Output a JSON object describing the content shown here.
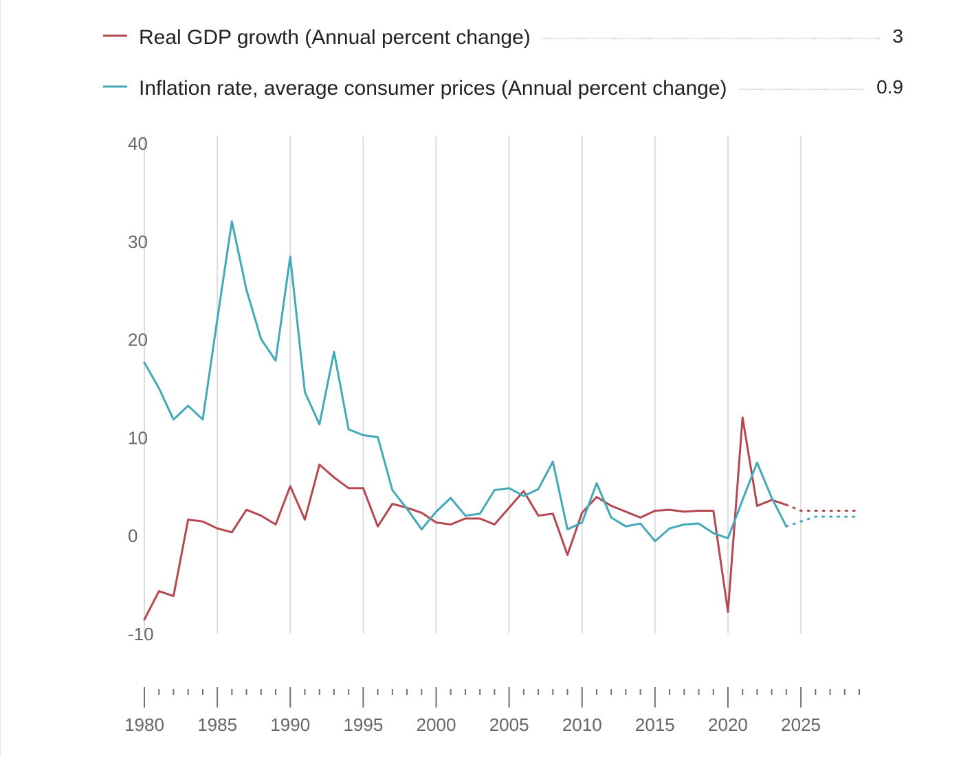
{
  "chart_data": {
    "type": "line",
    "title": "",
    "xlabel": "",
    "ylabel": "",
    "xlim": [
      1980,
      2029
    ],
    "ylim": [
      -10,
      40
    ],
    "grid": "vertical every 5 years",
    "legend_position": "top",
    "x_ticks": [
      "1980",
      "1985",
      "1990",
      "1995",
      "2000",
      "2005",
      "2010",
      "2015",
      "2020",
      "2025"
    ],
    "y_ticks": [
      "40",
      "30",
      "20",
      "10",
      "0",
      "-10"
    ],
    "last_actual_year": 2024,
    "series": [
      {
        "name": "Real GDP growth (Annual percent change)",
        "color": "#b5474f",
        "legend_value": "3",
        "x": [
          1980,
          1981,
          1982,
          1983,
          1984,
          1985,
          1986,
          1987,
          1988,
          1989,
          1990,
          1991,
          1992,
          1993,
          1994,
          1995,
          1996,
          1997,
          1998,
          1999,
          2000,
          2001,
          2002,
          2003,
          2004,
          2005,
          2006,
          2007,
          2008,
          2009,
          2010,
          2011,
          2012,
          2013,
          2014,
          2015,
          2016,
          2017,
          2018,
          2019,
          2020,
          2021,
          2022,
          2023,
          2024,
          2025,
          2026,
          2027,
          2028,
          2029
        ],
        "values": [
          -8.6,
          -5.7,
          -6.2,
          1.6,
          1.4,
          0.7,
          0.3,
          2.6,
          2.0,
          1.1,
          5.0,
          1.6,
          7.2,
          5.9,
          4.8,
          4.8,
          0.9,
          3.2,
          2.8,
          2.3,
          1.3,
          1.1,
          1.7,
          1.7,
          1.1,
          2.8,
          4.5,
          2.0,
          2.2,
          -2.0,
          2.3,
          3.9,
          3.0,
          2.4,
          1.8,
          2.5,
          2.6,
          2.4,
          2.5,
          2.5,
          -7.8,
          12.0,
          3.0,
          3.6,
          3.1,
          2.5,
          2.5,
          2.5,
          2.5,
          2.5
        ]
      },
      {
        "name": "Inflation rate, average consumer prices (Annual percent change)",
        "color": "#41a9b7",
        "legend_value": "0.9",
        "x": [
          1980,
          1981,
          1982,
          1983,
          1984,
          1985,
          1986,
          1987,
          1988,
          1989,
          1990,
          1991,
          1992,
          1993,
          1994,
          1995,
          1996,
          1997,
          1998,
          1999,
          2000,
          2001,
          2002,
          2003,
          2004,
          2005,
          2006,
          2007,
          2008,
          2009,
          2010,
          2011,
          2012,
          2013,
          2014,
          2015,
          2016,
          2017,
          2018,
          2019,
          2020,
          2021,
          2022,
          2023,
          2024,
          2025,
          2026,
          2027,
          2028,
          2029
        ],
        "values": [
          17.6,
          15.0,
          11.8,
          13.2,
          11.8,
          22.0,
          32.0,
          25.0,
          20.0,
          17.8,
          28.4,
          14.6,
          11.3,
          18.7,
          10.8,
          10.2,
          10.0,
          4.6,
          2.7,
          0.6,
          2.4,
          3.8,
          2.0,
          2.2,
          4.6,
          4.8,
          4.0,
          4.7,
          7.5,
          0.6,
          1.3,
          5.3,
          1.8,
          0.9,
          1.2,
          -0.6,
          0.7,
          1.1,
          1.2,
          0.2,
          -0.3,
          3.6,
          7.4,
          3.8,
          0.9,
          1.4,
          1.9,
          1.9,
          1.9,
          1.9
        ]
      }
    ]
  }
}
